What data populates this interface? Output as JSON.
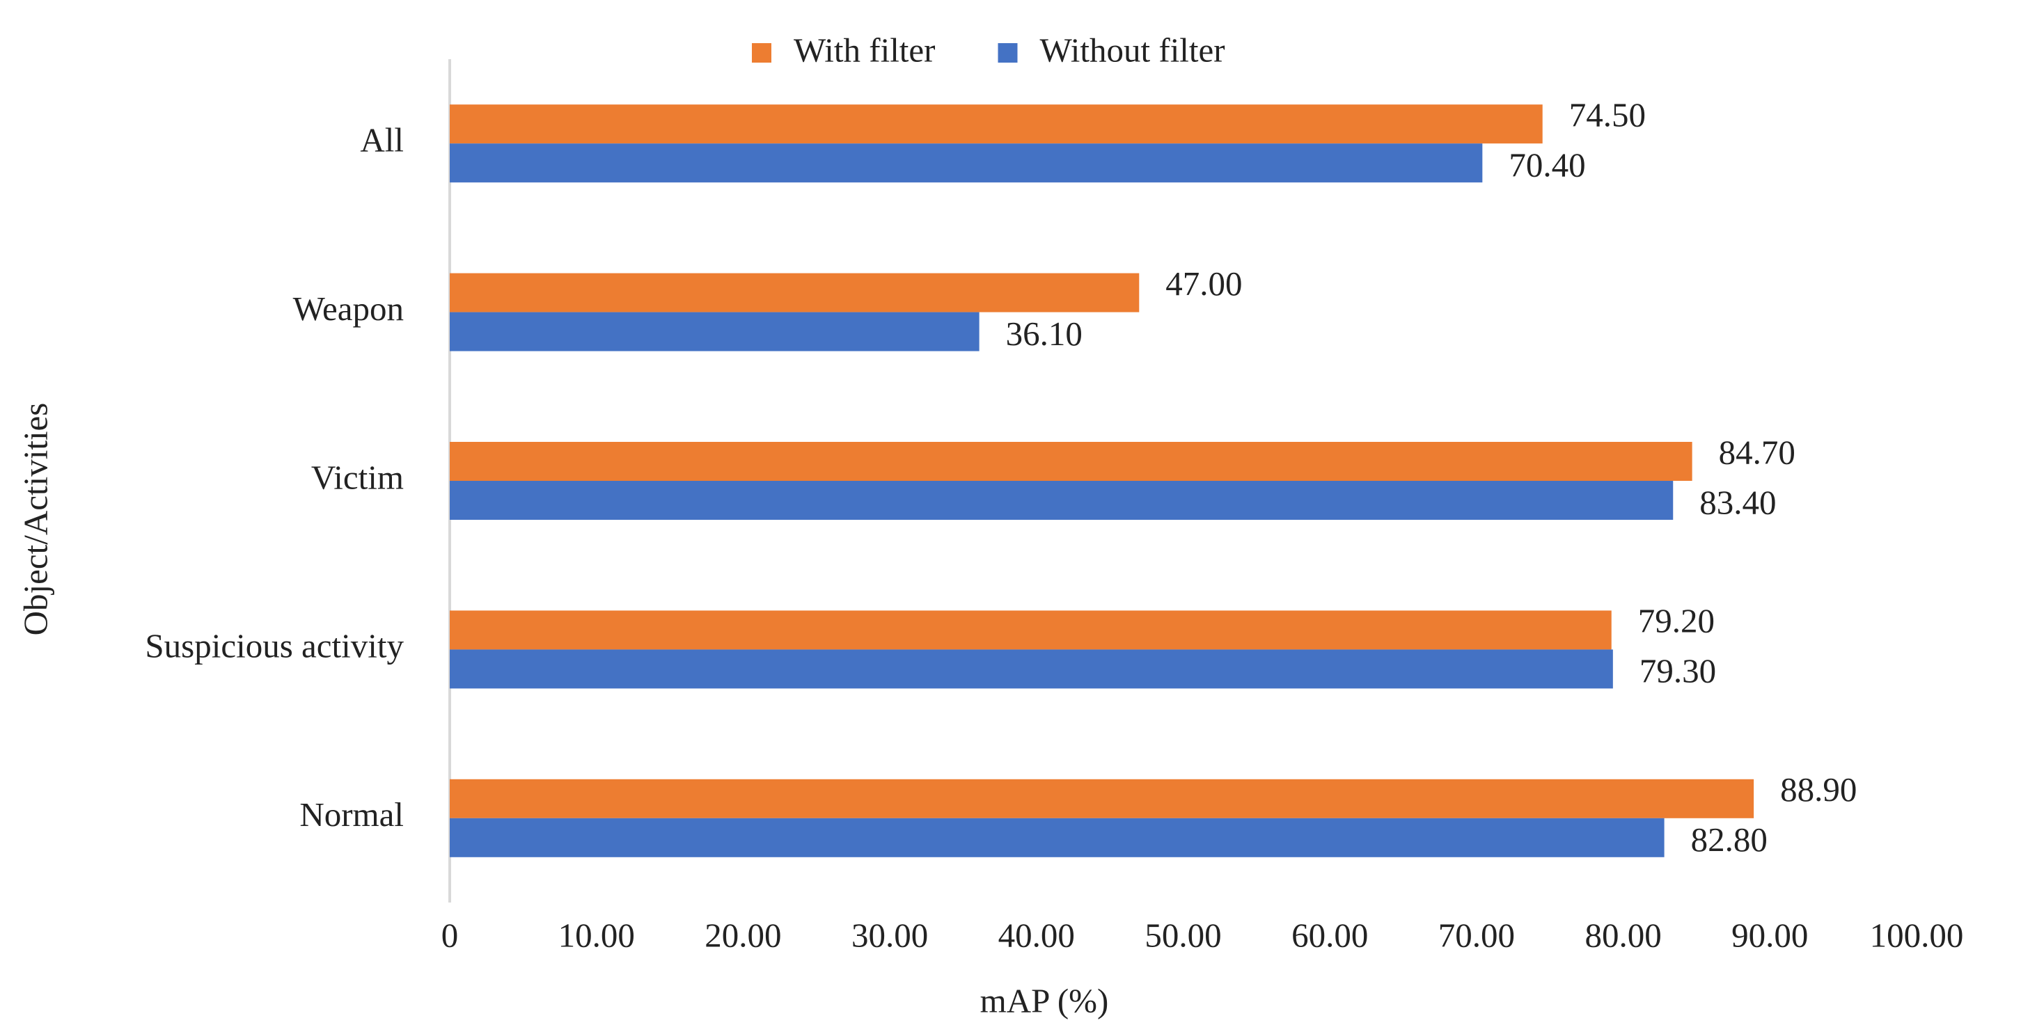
{
  "chart_data": {
    "type": "bar",
    "orientation": "horizontal",
    "y_label": "Object/Activities",
    "x_label": "mAP (%)",
    "categories": [
      "All",
      "Weapon",
      "Victim",
      "Suspicious activity",
      "Normal"
    ],
    "series": [
      {
        "name": "With filter",
        "color": "#ED7D31",
        "values": [
          74.5,
          47,
          84.7,
          79.2,
          88.9
        ],
        "value_labels": [
          "74.50",
          "47.00",
          "84.70",
          "79.20",
          "88.90"
        ]
      },
      {
        "name": "Without filter",
        "color": "#4472C4",
        "values": [
          70.4,
          36.1,
          83.4,
          79.3,
          82.8
        ],
        "value_labels": [
          "70.40",
          "36.10",
          "83.40",
          "79.30",
          "82.80"
        ]
      }
    ],
    "xlim": [
      0,
      100
    ],
    "xticks": [
      0,
      {
        "value": 10,
        "label": "10.00"
      },
      {
        "value": 20,
        "label": "20.00"
      },
      {
        "value": 30,
        "label": "30.00"
      },
      {
        "value": 40,
        "label": "40.00"
      },
      {
        "value": 50,
        "label": "50.00"
      },
      {
        "value": 60,
        "label": "60.00"
      },
      {
        "value": 70,
        "label": "70.00"
      },
      {
        "value": 80,
        "label": "80.00"
      },
      {
        "value": 90,
        "label": "90.00"
      },
      {
        "value": 100,
        "label": "100.00"
      }
    ],
    "grid": false,
    "legend": "top"
  }
}
